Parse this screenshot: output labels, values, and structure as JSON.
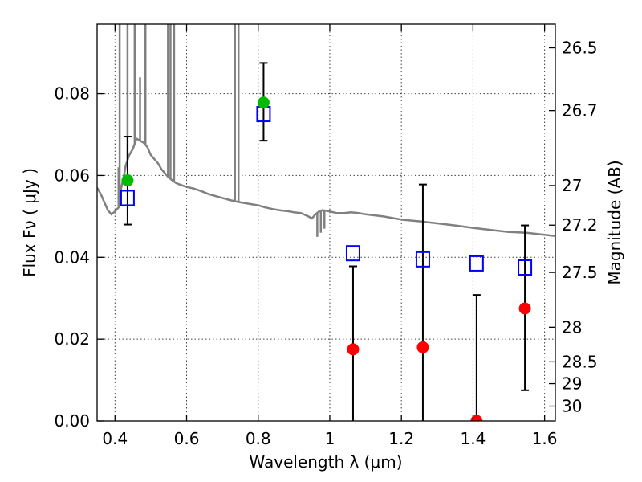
{
  "chart_data": {
    "type": "scatter",
    "xlabel": "Wavelength  λ (μm)",
    "ylabel": "Flux  Fν  ( μJy )",
    "y2label": "Magnitude (AB)",
    "xlim": [
      0.35,
      1.63
    ],
    "ylim": [
      0.0,
      0.097
    ],
    "grid": true,
    "x_ticks": [
      {
        "value": 0.4,
        "label": "0.4"
      },
      {
        "value": 0.6,
        "label": "0.6"
      },
      {
        "value": 0.8,
        "label": "0.8"
      },
      {
        "value": 1.0,
        "label": "1"
      },
      {
        "value": 1.2,
        "label": "1.2"
      },
      {
        "value": 1.4,
        "label": "1.4"
      },
      {
        "value": 1.6,
        "label": "1.6"
      }
    ],
    "y_ticks": [
      {
        "value": 0.0,
        "label": "0.00"
      },
      {
        "value": 0.02,
        "label": "0.02"
      },
      {
        "value": 0.04,
        "label": "0.04"
      },
      {
        "value": 0.06,
        "label": "0.06"
      },
      {
        "value": 0.08,
        "label": "0.08"
      }
    ],
    "y2_ticks": [
      {
        "mag": 26.5,
        "label": "26.5"
      },
      {
        "mag": 26.7,
        "label": "26.7"
      },
      {
        "mag": 27.0,
        "label": "27"
      },
      {
        "mag": 27.2,
        "label": "27.2"
      },
      {
        "mag": 27.5,
        "label": "27.5"
      },
      {
        "mag": 28.0,
        "label": "28"
      },
      {
        "mag": 28.5,
        "label": "28.5"
      },
      {
        "mag": 29.0,
        "label": "29"
      },
      {
        "mag": 30.0,
        "label": "30"
      }
    ],
    "model_spectrum": {
      "color": "#808080",
      "points": [
        [
          0.35,
          0.057
        ],
        [
          0.36,
          0.0555
        ],
        [
          0.37,
          0.0535
        ],
        [
          0.38,
          0.0515
        ],
        [
          0.39,
          0.0505
        ],
        [
          0.4,
          0.0512
        ],
        [
          0.41,
          0.0522
        ],
        [
          0.415,
          0.056
        ],
        [
          0.42,
          0.058
        ],
        [
          0.425,
          0.06
        ],
        [
          0.43,
          0.0625
        ],
        [
          0.44,
          0.065
        ],
        [
          0.45,
          0.0665
        ],
        [
          0.46,
          0.069
        ],
        [
          0.47,
          0.0685
        ],
        [
          0.48,
          0.068
        ],
        [
          0.49,
          0.067
        ],
        [
          0.5,
          0.065
        ],
        [
          0.51,
          0.064
        ],
        [
          0.52,
          0.063
        ],
        [
          0.53,
          0.0615
        ],
        [
          0.54,
          0.0605
        ],
        [
          0.55,
          0.0595
        ],
        [
          0.56,
          0.0588
        ],
        [
          0.57,
          0.0582
        ],
        [
          0.58,
          0.0578
        ],
        [
          0.6,
          0.0572
        ],
        [
          0.62,
          0.0568
        ],
        [
          0.64,
          0.0562
        ],
        [
          0.66,
          0.0555
        ],
        [
          0.68,
          0.055
        ],
        [
          0.7,
          0.0545
        ],
        [
          0.72,
          0.054
        ],
        [
          0.74,
          0.0536
        ],
        [
          0.76,
          0.0533
        ],
        [
          0.78,
          0.053
        ],
        [
          0.8,
          0.0527
        ],
        [
          0.82,
          0.0522
        ],
        [
          0.84,
          0.0518
        ],
        [
          0.86,
          0.0515
        ],
        [
          0.88,
          0.0513
        ],
        [
          0.9,
          0.051
        ],
        [
          0.92,
          0.0508
        ],
        [
          0.94,
          0.05
        ],
        [
          0.95,
          0.0495
        ],
        [
          0.96,
          0.0505
        ],
        [
          0.97,
          0.0512
        ],
        [
          0.98,
          0.0515
        ],
        [
          1.0,
          0.0512
        ],
        [
          1.02,
          0.0508
        ],
        [
          1.04,
          0.0508
        ],
        [
          1.06,
          0.051
        ],
        [
          1.08,
          0.0508
        ],
        [
          1.1,
          0.0505
        ],
        [
          1.15,
          0.05
        ],
        [
          1.2,
          0.0492
        ],
        [
          1.25,
          0.0488
        ],
        [
          1.3,
          0.0483
        ],
        [
          1.35,
          0.0478
        ],
        [
          1.4,
          0.0472
        ],
        [
          1.45,
          0.0467
        ],
        [
          1.5,
          0.0462
        ],
        [
          1.55,
          0.046
        ],
        [
          1.6,
          0.0455
        ],
        [
          1.63,
          0.0452
        ]
      ],
      "absorption_features": [
        {
          "x": 0.41,
          "depth_to": 0.062
        },
        {
          "x": 0.413,
          "depth_to": 0.097
        },
        {
          "x": 0.435,
          "depth_to": 0.097
        },
        {
          "x": 0.455,
          "depth_to": 0.097
        },
        {
          "x": 0.47,
          "depth_to": 0.084
        },
        {
          "x": 0.485,
          "depth_to": 0.097
        },
        {
          "x": 0.548,
          "depth_to": 0.097
        },
        {
          "x": 0.555,
          "depth_to": 0.097
        },
        {
          "x": 0.565,
          "depth_to": 0.097
        },
        {
          "x": 0.735,
          "depth_to": 0.097
        },
        {
          "x": 0.745,
          "depth_to": 0.097
        },
        {
          "x": 0.965,
          "depth_to": 0.045
        },
        {
          "x": 0.975,
          "depth_to": 0.046
        },
        {
          "x": 0.985,
          "depth_to": 0.047
        }
      ]
    },
    "series": [
      {
        "marker": "square",
        "color": "#0000ff",
        "points": [
          {
            "x": 0.435,
            "y": 0.0545
          },
          {
            "x": 0.815,
            "y": 0.075
          },
          {
            "x": 1.065,
            "y": 0.041
          },
          {
            "x": 1.26,
            "y": 0.0395
          },
          {
            "x": 1.41,
            "y": 0.0385
          },
          {
            "x": 1.545,
            "y": 0.0375
          }
        ]
      },
      {
        "marker": "circle",
        "color": "#00bb00",
        "points": [
          {
            "x": 0.435,
            "y": 0.0588,
            "yerr_low": 0.048,
            "yerr_high": 0.0695
          },
          {
            "x": 0.815,
            "y": 0.0778,
            "yerr_low": 0.0685,
            "yerr_high": 0.0875
          }
        ]
      },
      {
        "marker": "circle",
        "color": "#ff0000",
        "points": [
          {
            "x": 1.065,
            "y": 0.0175,
            "yerr_low": 0.0,
            "yerr_high": 0.0378
          },
          {
            "x": 1.26,
            "y": 0.018,
            "yerr_low": 0.0,
            "yerr_high": 0.0578
          },
          {
            "x": 1.41,
            "y": 0.0,
            "yerr_low": 0.0,
            "yerr_high": 0.0308
          },
          {
            "x": 1.545,
            "y": 0.0275,
            "yerr_low": 0.0075,
            "yerr_high": 0.0478
          }
        ]
      }
    ]
  }
}
